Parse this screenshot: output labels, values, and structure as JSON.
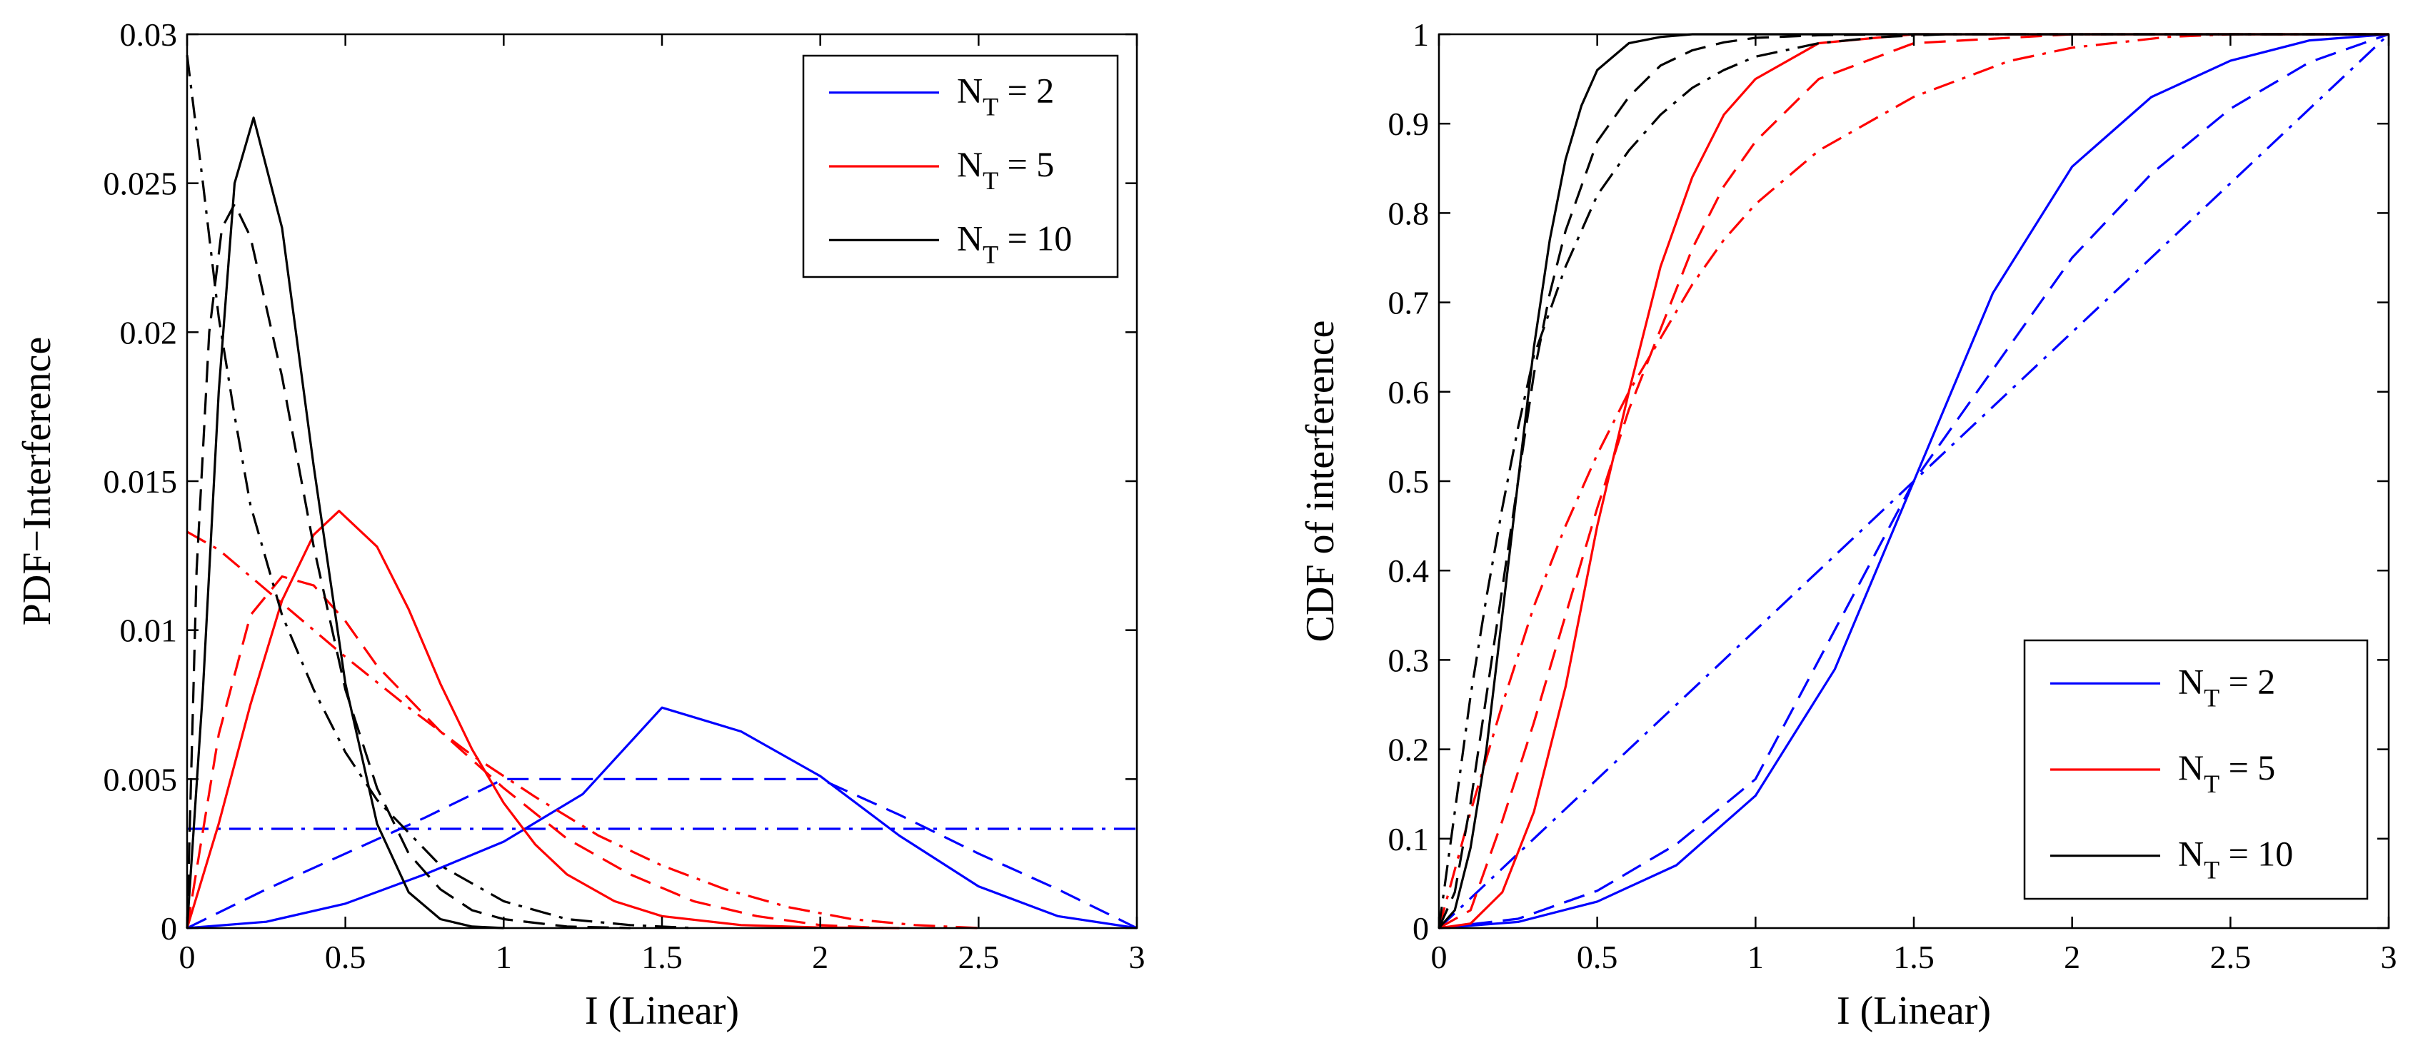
{
  "chart_data": [
    {
      "type": "line",
      "title": "",
      "xlabel": "I (Linear)",
      "ylabel": "PDF−Interference",
      "xlim": [
        0,
        3
      ],
      "ylim": [
        0,
        0.03
      ],
      "xticks": [
        0,
        0.5,
        1,
        1.5,
        2,
        2.5,
        3
      ],
      "xtick_labels": [
        "0",
        "0.5",
        "1",
        "1.5",
        "2",
        "2.5",
        "3"
      ],
      "yticks": [
        0,
        0.005,
        0.01,
        0.015,
        0.02,
        0.025,
        0.03
      ],
      "ytick_labels": [
        "0",
        "0.005",
        "0.01",
        "0.015",
        "0.02",
        "0.025",
        "0.03"
      ],
      "grid": false,
      "legend_position": "top-right",
      "legend": [
        {
          "base": "N",
          "sub": "T",
          "rest": " = 2",
          "color": "#0000ff"
        },
        {
          "base": "N",
          "sub": "T",
          "rest": " = 5",
          "color": "#ff0000"
        },
        {
          "base": "N",
          "sub": "T",
          "rest": " = 10",
          "color": "#000000"
        }
      ],
      "series": [
        {
          "name": "N_T = 2",
          "style": "solid",
          "color": "#0000ff",
          "x": [
            0,
            0.25,
            0.5,
            0.75,
            1.0,
            1.25,
            1.5,
            1.75,
            2.0,
            2.25,
            2.5,
            2.75,
            3.0
          ],
          "y": [
            0,
            0.00021,
            0.00082,
            0.0018,
            0.0029,
            0.0045,
            0.0074,
            0.0066,
            0.0051,
            0.0031,
            0.0014,
            0.0004,
            0
          ]
        },
        {
          "name": "N_T = 2",
          "style": "dashed",
          "color": "#0000ff",
          "x": [
            0,
            0.25,
            0.5,
            0.75,
            1.0,
            1.5,
            2.0,
            2.25,
            2.5,
            2.75,
            3.0
          ],
          "y": [
            0,
            0.0013,
            0.0025,
            0.0037,
            0.005,
            0.005,
            0.005,
            0.0038,
            0.0025,
            0.0013,
            0
          ]
        },
        {
          "name": "N_T = 2",
          "style": "dashdot",
          "color": "#0000ff",
          "x": [
            0,
            3.0
          ],
          "y": [
            0.00333,
            0.00333
          ]
        },
        {
          "name": "N_T = 5",
          "style": "solid",
          "color": "#ff0000",
          "x": [
            0,
            0.1,
            0.2,
            0.3,
            0.4,
            0.48,
            0.6,
            0.7,
            0.8,
            0.9,
            1.0,
            1.1,
            1.2,
            1.35,
            1.5,
            1.75,
            2.0,
            2.25
          ],
          "y": [
            0,
            0.0035,
            0.0075,
            0.011,
            0.0132,
            0.014,
            0.0128,
            0.0107,
            0.0082,
            0.006,
            0.0042,
            0.0028,
            0.0018,
            0.0009,
            0.0004,
            0.0001,
            2e-05,
            0
          ]
        },
        {
          "name": "N_T = 5",
          "style": "dashed",
          "color": "#ff0000",
          "x": [
            0,
            0.1,
            0.2,
            0.3,
            0.4,
            0.5,
            0.6,
            0.8,
            1.0,
            1.2,
            1.4,
            1.6,
            1.8,
            2.0,
            2.2
          ],
          "y": [
            0,
            0.0065,
            0.0105,
            0.0118,
            0.0115,
            0.0103,
            0.0088,
            0.0066,
            0.0047,
            0.003,
            0.0018,
            0.0009,
            0.0004,
            0.0001,
            0
          ]
        },
        {
          "name": "N_T = 5",
          "style": "dashdot",
          "color": "#ff0000",
          "x": [
            0,
            0.1,
            0.2,
            0.3,
            0.5,
            0.7,
            0.9,
            1.1,
            1.3,
            1.5,
            1.7,
            1.9,
            2.1,
            2.3,
            2.5
          ],
          "y": [
            0.0133,
            0.0127,
            0.0118,
            0.0109,
            0.0091,
            0.0074,
            0.0058,
            0.0044,
            0.0031,
            0.0021,
            0.0013,
            0.0007,
            0.0003,
            0.0001,
            0
          ]
        },
        {
          "name": "N_T = 10",
          "style": "solid",
          "color": "#000000",
          "x": [
            0,
            0.05,
            0.1,
            0.15,
            0.21,
            0.3,
            0.4,
            0.5,
            0.6,
            0.7,
            0.8,
            0.9,
            1.0
          ],
          "y": [
            0,
            0.008,
            0.018,
            0.025,
            0.0272,
            0.0235,
            0.0155,
            0.0082,
            0.0035,
            0.0012,
            0.0003,
            5e-05,
            0
          ]
        },
        {
          "name": "N_T = 10",
          "style": "dashed",
          "color": "#000000",
          "x": [
            0,
            0.03,
            0.07,
            0.11,
            0.15,
            0.2,
            0.3,
            0.4,
            0.5,
            0.6,
            0.7,
            0.8,
            0.9,
            1.0,
            1.2,
            1.4
          ],
          "y": [
            0,
            0.012,
            0.02,
            0.0235,
            0.0243,
            0.0232,
            0.0185,
            0.0128,
            0.008,
            0.0047,
            0.0025,
            0.0013,
            0.0006,
            0.0003,
            5e-05,
            0
          ]
        },
        {
          "name": "N_T = 10",
          "style": "dashdot",
          "color": "#000000",
          "x": [
            0,
            0.05,
            0.1,
            0.15,
            0.2,
            0.3,
            0.4,
            0.5,
            0.6,
            0.8,
            1.0,
            1.2,
            1.4,
            1.6
          ],
          "y": [
            0.0293,
            0.025,
            0.0205,
            0.0172,
            0.0142,
            0.0105,
            0.008,
            0.0059,
            0.0043,
            0.0021,
            0.0009,
            0.0003,
            0.0001,
            0
          ]
        }
      ]
    },
    {
      "type": "line",
      "title": "",
      "xlabel": "I (Linear)",
      "ylabel": "CDF of interference",
      "xlim": [
        0,
        3
      ],
      "ylim": [
        0,
        1
      ],
      "xticks": [
        0,
        0.5,
        1,
        1.5,
        2,
        2.5,
        3
      ],
      "xtick_labels": [
        "0",
        "0.5",
        "1",
        "1.5",
        "2",
        "2.5",
        "3"
      ],
      "yticks": [
        0,
        0.1,
        0.2,
        0.3,
        0.4,
        0.5,
        0.6,
        0.7,
        0.8,
        0.9,
        1
      ],
      "ytick_labels": [
        "0",
        "0.1",
        "0.2",
        "0.3",
        "0.4",
        "0.5",
        "0.6",
        "0.7",
        "0.8",
        "0.9",
        "1"
      ],
      "grid": false,
      "legend_position": "bottom-right",
      "legend": [
        {
          "base": "N",
          "sub": "T",
          "rest": " = 2",
          "color": "#0000ff"
        },
        {
          "base": "N",
          "sub": "T",
          "rest": " = 5",
          "color": "#ff0000"
        },
        {
          "base": "N",
          "sub": "T",
          "rest": " = 10",
          "color": "#000000"
        }
      ],
      "series": [
        {
          "name": "N_T = 2",
          "style": "solid",
          "color": "#0000ff",
          "x": [
            0,
            0.25,
            0.5,
            0.75,
            1.0,
            1.25,
            1.5,
            1.75,
            2.0,
            2.25,
            2.5,
            2.75,
            3.0
          ],
          "y": [
            0,
            0.0069,
            0.0296,
            0.0703,
            0.1481,
            0.2894,
            0.5,
            0.7106,
            0.8519,
            0.9297,
            0.9704,
            0.9931,
            1.0
          ]
        },
        {
          "name": "N_T = 2",
          "style": "dashed",
          "color": "#0000ff",
          "x": [
            0,
            0.25,
            0.5,
            0.75,
            1.0,
            1.25,
            1.5,
            1.75,
            2.0,
            2.25,
            2.5,
            2.75,
            3.0
          ],
          "y": [
            0,
            0.0104,
            0.0417,
            0.0938,
            0.1667,
            0.3333,
            0.5,
            0.625,
            0.75,
            0.8438,
            0.9167,
            0.9688,
            1.0
          ]
        },
        {
          "name": "N_T = 2",
          "style": "dashdot",
          "color": "#0000ff",
          "x": [
            0,
            3.0
          ],
          "y": [
            0,
            1.0
          ]
        },
        {
          "name": "N_T = 5",
          "style": "solid",
          "color": "#ff0000",
          "x": [
            0,
            0.1,
            0.2,
            0.3,
            0.4,
            0.5,
            0.6,
            0.7,
            0.8,
            0.9,
            1.0,
            1.2,
            1.5,
            2.0,
            3.0
          ],
          "y": [
            0,
            0.005,
            0.04,
            0.13,
            0.27,
            0.45,
            0.6,
            0.74,
            0.84,
            0.91,
            0.95,
            0.99,
            1.0,
            1.0,
            1.0
          ]
        },
        {
          "name": "N_T = 5",
          "style": "dashed",
          "color": "#ff0000",
          "x": [
            0,
            0.1,
            0.2,
            0.3,
            0.4,
            0.5,
            0.6,
            0.7,
            0.8,
            0.9,
            1.0,
            1.2,
            1.5,
            2.0,
            2.5,
            3.0
          ],
          "y": [
            0,
            0.02,
            0.12,
            0.23,
            0.35,
            0.47,
            0.58,
            0.67,
            0.76,
            0.83,
            0.88,
            0.95,
            0.99,
            1.0,
            1.0,
            1.0
          ]
        },
        {
          "name": "N_T = 5",
          "style": "dashdot",
          "color": "#ff0000",
          "x": [
            0,
            0.1,
            0.2,
            0.3,
            0.4,
            0.5,
            0.6,
            0.7,
            0.8,
            0.9,
            1.0,
            1.2,
            1.5,
            1.8,
            2.0,
            2.3,
            2.5,
            3.0
          ],
          "y": [
            0,
            0.13,
            0.25,
            0.36,
            0.45,
            0.53,
            0.6,
            0.66,
            0.72,
            0.77,
            0.81,
            0.87,
            0.93,
            0.97,
            0.985,
            0.997,
            1.0,
            1.0
          ]
        },
        {
          "name": "N_T = 10",
          "style": "solid",
          "color": "#000000",
          "x": [
            0,
            0.05,
            0.1,
            0.15,
            0.2,
            0.25,
            0.3,
            0.35,
            0.4,
            0.45,
            0.5,
            0.6,
            0.7,
            0.8,
            1.0,
            3.0
          ],
          "y": [
            0,
            0.02,
            0.09,
            0.2,
            0.35,
            0.5,
            0.65,
            0.77,
            0.86,
            0.92,
            0.96,
            0.99,
            0.997,
            1.0,
            1.0,
            1.0
          ]
        },
        {
          "name": "N_T = 10",
          "style": "dashed",
          "color": "#000000",
          "x": [
            0,
            0.05,
            0.1,
            0.15,
            0.2,
            0.25,
            0.3,
            0.35,
            0.4,
            0.5,
            0.6,
            0.7,
            0.8,
            0.9,
            1.0,
            1.2,
            1.4,
            3.0
          ],
          "y": [
            0,
            0.04,
            0.14,
            0.26,
            0.38,
            0.5,
            0.62,
            0.71,
            0.78,
            0.88,
            0.93,
            0.965,
            0.982,
            0.991,
            0.996,
            0.999,
            1.0,
            1.0
          ]
        },
        {
          "name": "N_T = 10",
          "style": "dashdot",
          "color": "#000000",
          "x": [
            0,
            0.05,
            0.1,
            0.15,
            0.2,
            0.25,
            0.3,
            0.4,
            0.5,
            0.6,
            0.7,
            0.8,
            0.9,
            1.0,
            1.2,
            1.4,
            1.6,
            3.0
          ],
          "y": [
            0,
            0.13,
            0.26,
            0.37,
            0.47,
            0.56,
            0.64,
            0.74,
            0.82,
            0.87,
            0.91,
            0.94,
            0.96,
            0.975,
            0.99,
            0.997,
            1.0,
            1.0
          ]
        }
      ]
    }
  ]
}
